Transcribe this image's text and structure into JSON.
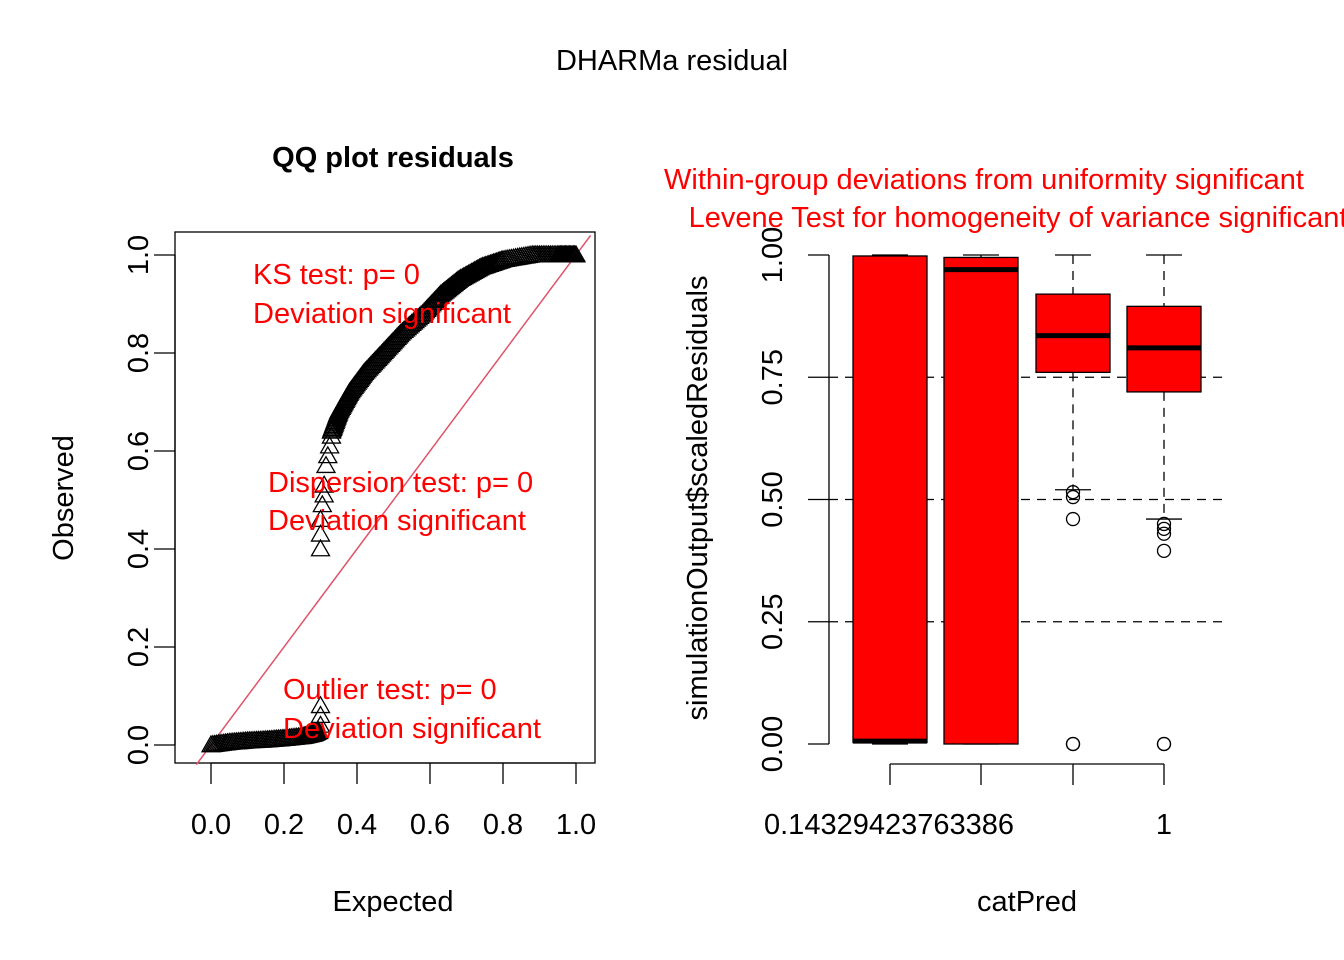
{
  "figure": {
    "title": "DHARMa residual"
  },
  "chart_data": [
    {
      "type": "scatter",
      "title": "QQ plot residuals",
      "xlabel": "Expected",
      "ylabel": "Observed",
      "xlim": [
        -0.04,
        1.04
      ],
      "ylim": [
        -0.04,
        1.04
      ],
      "xticks": [
        "0.0",
        "0.2",
        "0.4",
        "0.6",
        "0.8",
        "1.0"
      ],
      "yticks": [
        "0.0",
        "0.2",
        "0.4",
        "0.6",
        "0.8",
        "1.0"
      ],
      "reference_line": {
        "from": [
          0,
          0
        ],
        "to": [
          1,
          1
        ],
        "color": "#DF536B"
      },
      "point_marker": "triangle",
      "curve": {
        "low_segment": [
          [
            0.0,
            0.0
          ],
          [
            0.05,
            0.005
          ],
          [
            0.1,
            0.008
          ],
          [
            0.15,
            0.01
          ],
          [
            0.2,
            0.013
          ],
          [
            0.25,
            0.017
          ],
          [
            0.28,
            0.022
          ],
          [
            0.295,
            0.028
          ]
        ],
        "jump_points": [
          [
            0.3,
            0.04
          ],
          [
            0.3,
            0.06
          ],
          [
            0.3,
            0.08
          ],
          [
            0.3,
            0.4
          ],
          [
            0.3,
            0.43
          ],
          [
            0.3,
            0.46
          ],
          [
            0.305,
            0.49
          ],
          [
            0.31,
            0.51
          ],
          [
            0.31,
            0.53
          ],
          [
            0.315,
            0.57
          ],
          [
            0.32,
            0.59
          ],
          [
            0.325,
            0.61
          ],
          [
            0.33,
            0.63
          ]
        ],
        "high_segment": [
          [
            0.33,
            0.64
          ],
          [
            0.35,
            0.68
          ],
          [
            0.38,
            0.72
          ],
          [
            0.42,
            0.76
          ],
          [
            0.47,
            0.8
          ],
          [
            0.52,
            0.84
          ],
          [
            0.58,
            0.88
          ],
          [
            0.63,
            0.92
          ],
          [
            0.68,
            0.95
          ],
          [
            0.74,
            0.975
          ],
          [
            0.8,
            0.99
          ],
          [
            0.88,
            1.0
          ],
          [
            0.95,
            1.0
          ],
          [
            1.0,
            1.0
          ]
        ]
      },
      "annotations": [
        {
          "lines": [
            "KS test: p= 0",
            "Deviation  significant"
          ],
          "color": "#FF0000"
        },
        {
          "lines": [
            "Dispersion test: p= 0",
            "Deviation  significant"
          ],
          "color": "#FF0000"
        },
        {
          "lines": [
            "Outlier test: p= 0",
            "Deviation  significant"
          ],
          "color": "#FF0000"
        }
      ]
    },
    {
      "type": "box",
      "title": [
        "Within-group deviations from uniformity significant",
        "Levene Test for homogeneity of variance significant"
      ],
      "title_color": "#FF0000",
      "xlabel": "catPred",
      "ylabel": "simulationOutput$scaledResiduals",
      "ylim": [
        -0.04,
        1.04
      ],
      "yticks": [
        "0.00",
        "0.25",
        "0.50",
        "0.75",
        "1.00"
      ],
      "xtick_labels": [
        "0.14329423763386",
        "1"
      ],
      "hlines": [
        0.25,
        0.5,
        0.75
      ],
      "box_fill": "#FF0000",
      "boxes": [
        {
          "q1": 0.003,
          "median": 0.006,
          "q3": 0.998,
          "whisker_low": 0.0,
          "whisker_high": 1.0,
          "outliers": []
        },
        {
          "q1": 0.0,
          "median": 0.97,
          "q3": 0.995,
          "whisker_low": 0.0,
          "whisker_high": 1.0,
          "outliers": []
        },
        {
          "q1": 0.76,
          "median": 0.835,
          "q3": 0.92,
          "whisker_low": 0.52,
          "whisker_high": 1.0,
          "outliers": [
            0.515,
            0.505,
            0.46,
            0.0,
            0.0
          ]
        },
        {
          "q1": 0.72,
          "median": 0.81,
          "q3": 0.895,
          "whisker_low": 0.46,
          "whisker_high": 1.0,
          "outliers": [
            0.45,
            0.44,
            0.43,
            0.395,
            0.0,
            0.0
          ]
        }
      ]
    }
  ]
}
